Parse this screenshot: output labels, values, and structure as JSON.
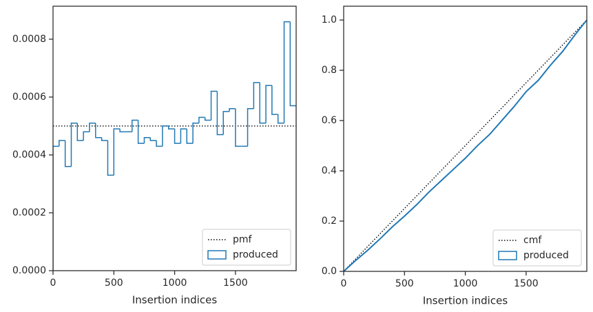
{
  "chart_data": [
    {
      "type": "histogram",
      "xlabel": "Insertion indices",
      "name": "produced",
      "color": "#1f77b4",
      "bins": [
        0,
        50,
        100,
        150,
        200,
        250,
        300,
        350,
        400,
        450,
        500,
        550,
        600,
        650,
        700,
        750,
        800,
        850,
        900,
        950,
        1000,
        1050,
        1100,
        1150,
        1200,
        1250,
        1300,
        1350,
        1400,
        1450,
        1500,
        1550,
        1600,
        1650,
        1700,
        1750,
        1800,
        1850,
        1900,
        1950,
        2000
      ],
      "values": [
        0.00043,
        0.00045,
        0.00036,
        0.00051,
        0.00045,
        0.00048,
        0.00051,
        0.00046,
        0.00045,
        0.00033,
        0.00049,
        0.00048,
        0.00048,
        0.00052,
        0.00044,
        0.00046,
        0.00045,
        0.00043,
        0.0005,
        0.00049,
        0.00044,
        0.00049,
        0.00044,
        0.00051,
        0.00053,
        0.00052,
        0.00062,
        0.00047,
        0.00055,
        0.00056,
        0.00043,
        0.00043,
        0.00056,
        0.00065,
        0.00051,
        0.00064,
        0.00054,
        0.00051,
        0.00086,
        0.00057
      ],
      "reference": {
        "name": "pmf",
        "value": 0.0005,
        "color": "#000000"
      },
      "xlim": [
        0,
        1999
      ],
      "ylim": [
        0,
        0.000914
      ],
      "xticks": [
        0,
        500,
        1000,
        1500
      ],
      "yticks": [
        {
          "value": 0,
          "label": "0.0000"
        },
        {
          "value": 0.0002,
          "label": "0.0002"
        },
        {
          "value": 0.0004,
          "label": "0.0004"
        },
        {
          "value": 0.0006,
          "label": "0.0006"
        },
        {
          "value": 0.0008,
          "label": "0.0008"
        }
      ],
      "legend": "lower right"
    },
    {
      "type": "line",
      "xlabel": "Insertion indices",
      "series": [
        {
          "name": "cmf",
          "color": "#000000",
          "style": "dotted",
          "x": [
            0,
            1999
          ],
          "values": [
            0,
            1
          ]
        },
        {
          "name": "produced",
          "color": "#1f77b4",
          "style": "solid",
          "x": [
            0,
            100,
            200,
            300,
            400,
            500,
            600,
            700,
            800,
            900,
            1000,
            1100,
            1200,
            1300,
            1400,
            1500,
            1600,
            1700,
            1800,
            1900,
            1999
          ],
          "values": [
            0,
            0.044,
            0.085,
            0.13,
            0.177,
            0.22,
            0.265,
            0.315,
            0.36,
            0.405,
            0.45,
            0.5,
            0.545,
            0.6,
            0.655,
            0.715,
            0.76,
            0.82,
            0.875,
            0.94,
            1.0
          ]
        }
      ],
      "xlim": [
        0,
        1999
      ],
      "ylim": [
        0,
        1.055
      ],
      "xticks": [
        0,
        500,
        1000,
        1500
      ],
      "yticks": [
        {
          "value": 0,
          "label": "0.0"
        },
        {
          "value": 0.2,
          "label": "0.2"
        },
        {
          "value": 0.4,
          "label": "0.4"
        },
        {
          "value": 0.6,
          "label": "0.6"
        },
        {
          "value": 0.8,
          "label": "0.8"
        },
        {
          "value": 1,
          "label": "1.0"
        }
      ],
      "legend": "lower right"
    }
  ]
}
